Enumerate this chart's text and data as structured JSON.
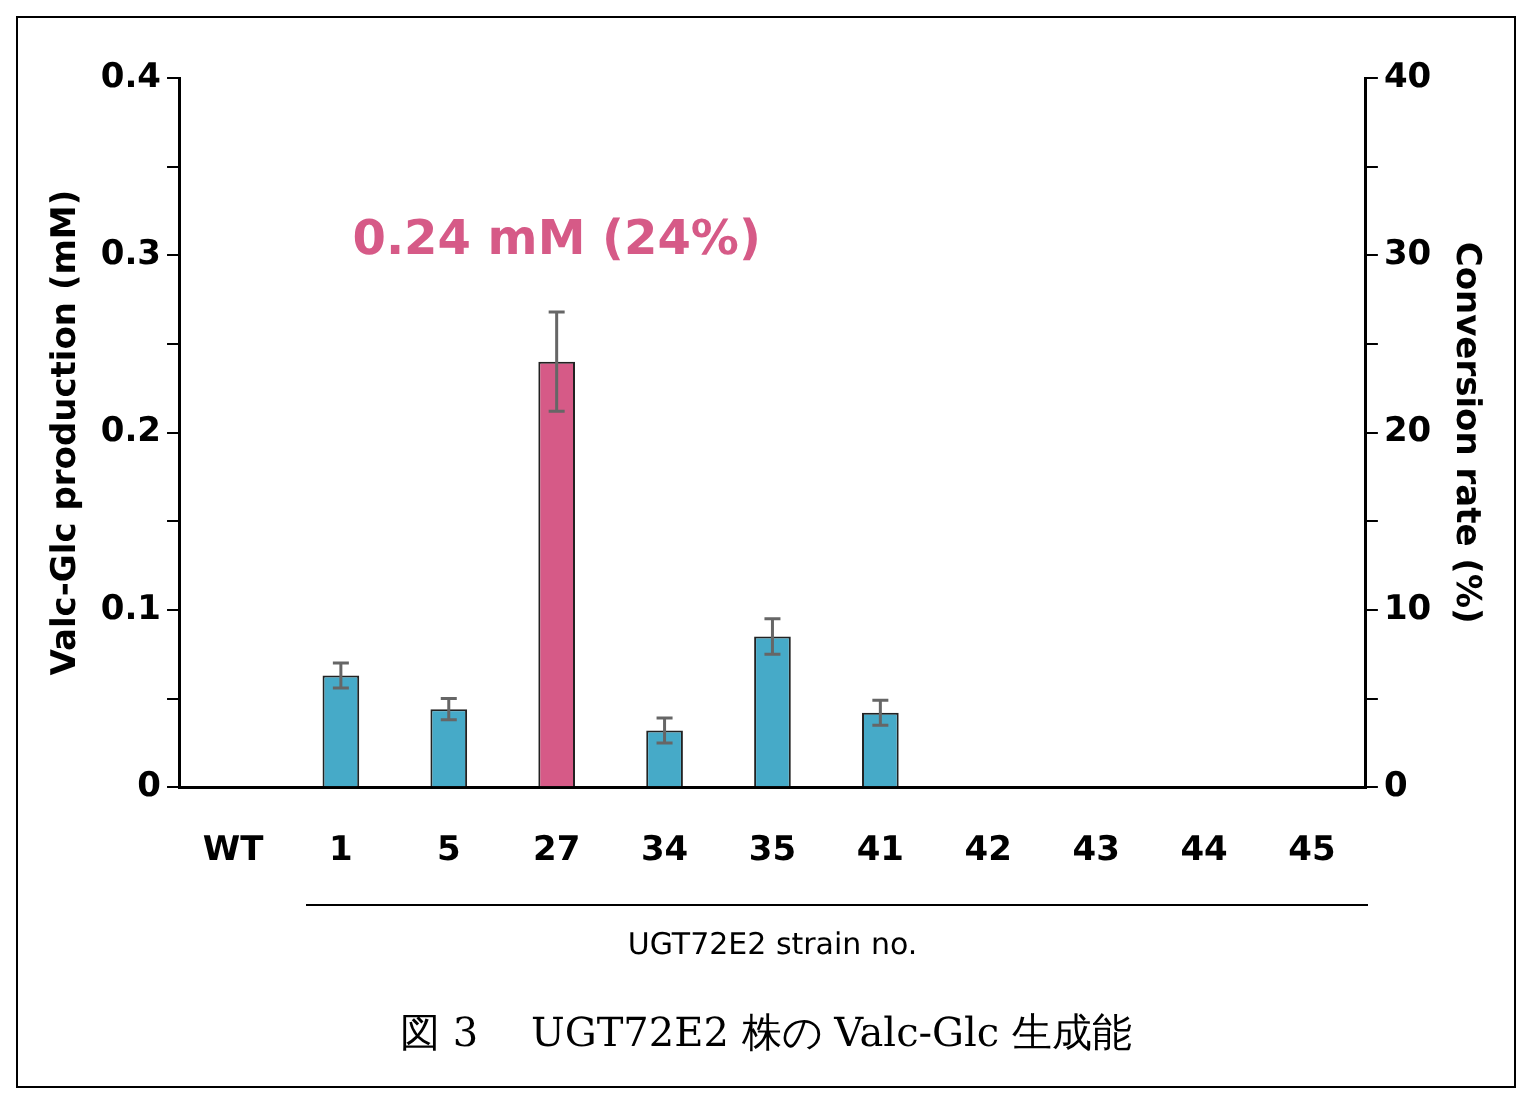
{
  "chart_data": {
    "type": "bar",
    "title": "図 3　 UGT72E2 株の Valc-Glc 生成能",
    "xlabel": "UGT72E2 strain no.",
    "ylabel": "Valc-Glc production (mM)",
    "y2label": "Conversion rate (%)",
    "categories": [
      "WT",
      "1",
      "5",
      "27",
      "34",
      "35",
      "41",
      "42",
      "43",
      "44",
      "45"
    ],
    "values": [
      0,
      0.063,
      0.044,
      0.24,
      0.032,
      0.085,
      0.042,
      0,
      0,
      0,
      0
    ],
    "errors": [
      null,
      0.007,
      0.006,
      0.028,
      0.007,
      0.01,
      0.007,
      null,
      null,
      null,
      null
    ],
    "colors": [
      "#46aac8",
      "#46aac8",
      "#46aac8",
      "#d65a87",
      "#46aac8",
      "#46aac8",
      "#46aac8",
      "#46aac8",
      "#46aac8",
      "#46aac8",
      "#46aac8"
    ],
    "ylim": [
      0,
      0.4
    ],
    "yticks": [
      0,
      {
        "value": 0.05,
        "label": null
      },
      0.1,
      {
        "value": 0.15,
        "label": null
      },
      0.2,
      {
        "value": 0.25,
        "label": null
      },
      0.3,
      {
        "value": 0.35,
        "label": null
      },
      0.4
    ],
    "y2lim": [
      0,
      40
    ],
    "y2ticks": [
      0,
      {
        "value": 5,
        "label": null
      },
      10,
      {
        "value": 15,
        "label": null
      },
      20,
      {
        "value": 25,
        "label": null
      },
      30,
      {
        "value": 35,
        "label": null
      },
      40
    ],
    "annotations": [
      "0.24 mM (24%)"
    ],
    "grid": false,
    "legend": false
  }
}
